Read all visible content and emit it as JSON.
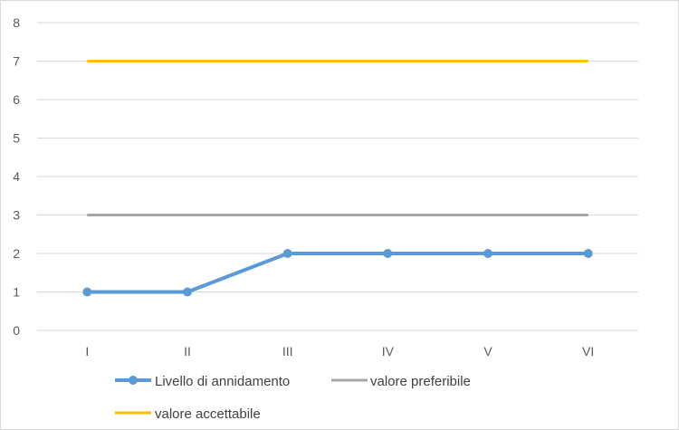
{
  "chart_data": {
    "type": "line",
    "categories": [
      "I",
      "II",
      "III",
      "IV",
      "V",
      "VI"
    ],
    "ylim": [
      0,
      8
    ],
    "yticks": [
      "0",
      "1",
      "2",
      "3",
      "4",
      "5",
      "6",
      "7",
      "8"
    ],
    "grid": "horizontal",
    "legend_placement": "bottom",
    "series": [
      {
        "name": "Livello di annidamento",
        "values": [
          1,
          1,
          2,
          2,
          2,
          2
        ],
        "color": "#5b9bd5",
        "markers": true
      },
      {
        "name": "valore preferibile",
        "values": [
          3,
          3,
          3,
          3,
          3,
          3
        ],
        "color": "#a5a5a5",
        "markers": false
      },
      {
        "name": "valore accettabile",
        "values": [
          7,
          7,
          7,
          7,
          7,
          7
        ],
        "color": "#ffc000",
        "markers": false
      }
    ]
  }
}
